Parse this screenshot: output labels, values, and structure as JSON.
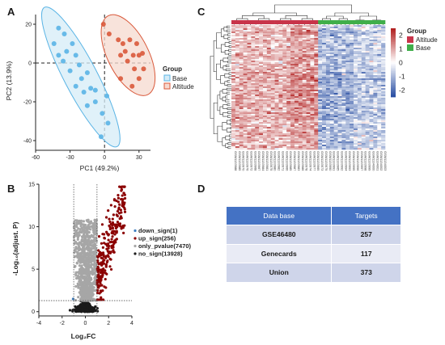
{
  "panels": {
    "a": "A",
    "b": "B",
    "c": "C",
    "d": "D"
  },
  "chart_data": [
    {
      "panel": "A",
      "type": "scatter",
      "xlabel": "PC1 (49.2%)",
      "ylabel": "PC2 (13.9%)",
      "xlim": [
        -60,
        40
      ],
      "ylim": [
        -45,
        25
      ],
      "xticks": [
        "-60",
        "-30",
        "0",
        "30"
      ],
      "yticks": [
        "-40",
        "-20",
        "0",
        "20"
      ],
      "legend_title": "Group",
      "legend_position": "right",
      "series": [
        {
          "name": "Base",
          "color": "#5ab4e5",
          "points": [
            [
              -40,
              18
            ],
            [
              -44,
              10
            ],
            [
              -35,
              15
            ],
            [
              -28,
              10
            ],
            [
              -33,
              6
            ],
            [
              -40,
              4
            ],
            [
              -36,
              1
            ],
            [
              -25,
              4
            ],
            [
              -22,
              -1
            ],
            [
              -30,
              -4
            ],
            [
              -20,
              -8
            ],
            [
              -15,
              -5
            ],
            [
              -25,
              -12
            ],
            [
              -12,
              -13
            ],
            [
              -18,
              -15
            ],
            [
              -8,
              -14
            ],
            [
              -15,
              -22
            ],
            [
              -8,
              -20
            ],
            [
              -2,
              -26
            ],
            [
              3,
              -31
            ],
            [
              -3,
              -38
            ],
            [
              2,
              -17
            ]
          ]
        },
        {
          "name": "Altitude",
          "color": "#d9583a",
          "points": [
            [
              -1,
              20
            ],
            [
              4,
              15
            ],
            [
              12,
              12
            ],
            [
              16,
              10
            ],
            [
              22,
              12
            ],
            [
              28,
              10
            ],
            [
              18,
              6
            ],
            [
              25,
              4
            ],
            [
              14,
              4
            ],
            [
              30,
              4
            ],
            [
              20,
              1
            ],
            [
              26,
              -3
            ],
            [
              34,
              -3
            ],
            [
              14,
              -8
            ],
            [
              30,
              -8
            ],
            [
              24,
              -12
            ],
            [
              33,
              5
            ]
          ]
        }
      ]
    },
    {
      "panel": "B",
      "type": "scatter",
      "xlabel": "Log₂FC",
      "ylabel": "-Log₁₀(adjust. P)",
      "xlim": [
        -4,
        4
      ],
      "ylim": [
        -0.5,
        15
      ],
      "xticks": [
        "-4",
        "-2",
        "0",
        "2",
        "4"
      ],
      "yticks": [
        "0",
        "5",
        "10",
        "15"
      ],
      "threshold_lines": {
        "x": [
          -1,
          1
        ],
        "y": 1.3
      },
      "legend_position": "right",
      "series": [
        {
          "name": "down_sign(1)",
          "color": "#3f7fc0",
          "count": 1
        },
        {
          "name": "up_sign(256)",
          "color": "#8b0000",
          "count": 256
        },
        {
          "name": "only_pvalue(7470)",
          "color": "#a6a6a6",
          "count": 7470
        },
        {
          "name": "no_sign(13928)",
          "color": "#1a1a1a",
          "count": 13928
        }
      ]
    },
    {
      "panel": "C",
      "type": "heatmap",
      "legend_title": "Group",
      "groups": [
        {
          "name": "Altitude",
          "color": "#c8344a"
        },
        {
          "name": "Base",
          "color": "#3fae4a"
        }
      ],
      "colorbar_ticks": [
        "2",
        "1",
        "0",
        "-1",
        "-2"
      ],
      "colorbar_range": [
        -2.5,
        2.5
      ],
      "colorbar_colors": [
        "#2a4fa3",
        "#ffffff",
        "#b22222"
      ],
      "columns": [
        "GSM1133988",
        "GSM1133985",
        "GSM1133970",
        "GSM1133976",
        "GSM1133972",
        "GSM1133968",
        "GSM1133967",
        "GSM1133984",
        "GSM1133981",
        "GSM1133975",
        "GSM1133980",
        "GSM1133982",
        "GSM1133971",
        "GSM1133966",
        "GSM1133989",
        "GSM1133987",
        "GSM1133983",
        "GSM1133986",
        "GSM1133978",
        "GSM1133974",
        "GSM1133977",
        "GSM1133969",
        "GSM1133973",
        "GSM1133979",
        "GSM1133990",
        "GSM1133991",
        "GSM1133965",
        "GSM1133992",
        "GSM1133994",
        "GSM1133993",
        "GSM1133995",
        "GSM1133996",
        "GSM1133997",
        "GSM1133998",
        "GSM1133999",
        "GSM1134000",
        "GSM1134001",
        "GSM1134002",
        "GSM1134003"
      ],
      "column_groups": [
        "Altitude",
        "Altitude",
        "Altitude",
        "Altitude",
        "Altitude",
        "Altitude",
        "Altitude",
        "Altitude",
        "Altitude",
        "Altitude",
        "Altitude",
        "Altitude",
        "Altitude",
        "Altitude",
        "Altitude",
        "Altitude",
        "Altitude",
        "Altitude",
        "Altitude",
        "Altitude",
        "Altitude",
        "Altitude",
        "Base",
        "Base",
        "Base",
        "Base",
        "Base",
        "Base",
        "Base",
        "Base",
        "Base",
        "Base",
        "Base",
        "Base",
        "Base",
        "Base",
        "Base",
        "Base",
        "Base"
      ],
      "row_count": 257
    }
  ],
  "table": {
    "headers": [
      "Data base",
      "Targets"
    ],
    "rows": [
      [
        "GSE46480",
        "257"
      ],
      [
        "Genecards",
        "117"
      ],
      [
        "Union",
        "373"
      ]
    ]
  }
}
